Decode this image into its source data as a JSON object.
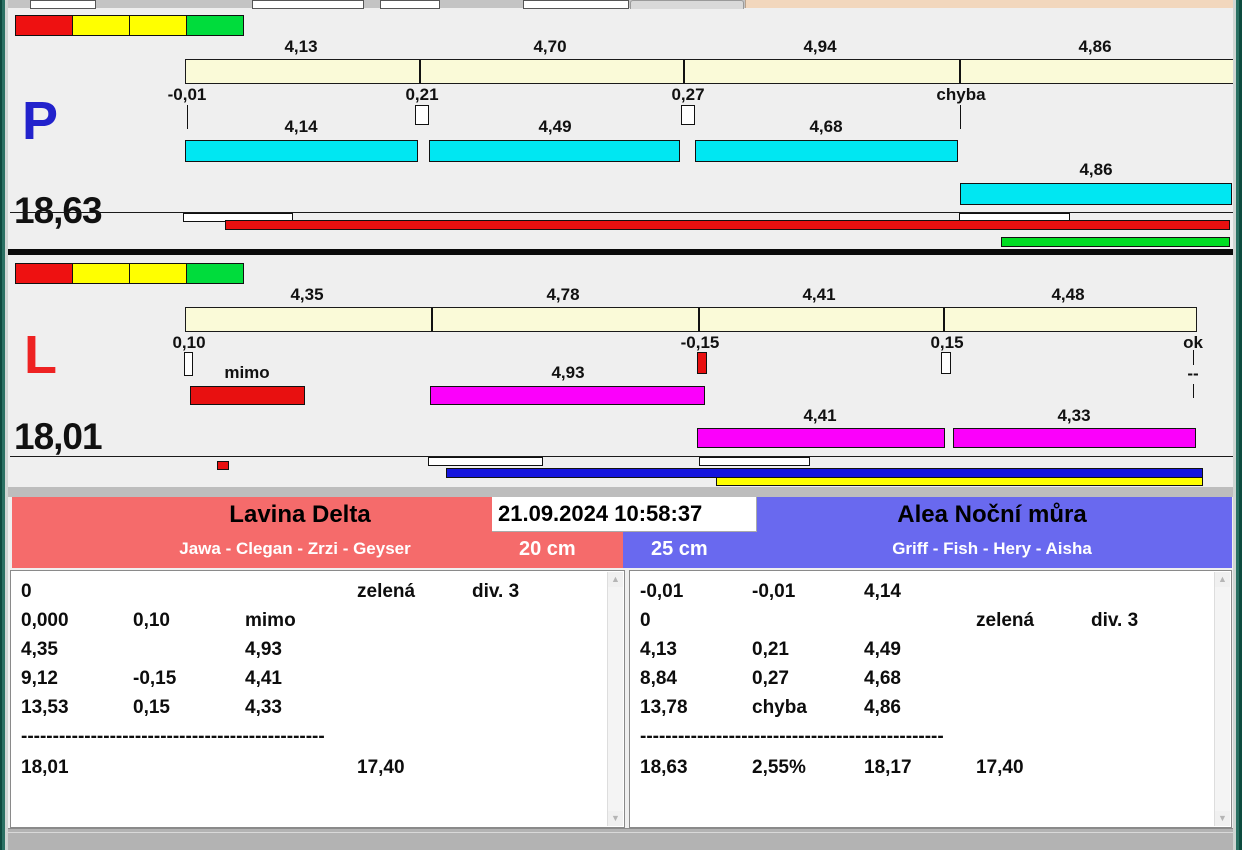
{
  "datetime": "21.09.2024 10:58:37",
  "lane_p": {
    "letter": "P",
    "letter_color": "#2222cc",
    "total_time": "18,63",
    "legend_colors": [
      "#ee1111",
      "#ffff00",
      "#ffff00",
      "#00dc3c"
    ],
    "segment_times": [
      "4,13",
      "4,70",
      "4,94",
      "4,86"
    ],
    "change_markers": [
      "-0,01",
      "0,21",
      "0,27",
      "chyba"
    ],
    "dog_times": [
      "4,14",
      "4,49",
      "4,68",
      "4,86"
    ],
    "dog_bar_color": "#00e7f2"
  },
  "lane_l": {
    "letter": "L",
    "letter_color": "#ee2222",
    "total_time": "18,01",
    "legend_colors": [
      "#ee1111",
      "#ffff00",
      "#ffff00",
      "#00dc3c"
    ],
    "segment_times": [
      "4,35",
      "4,78",
      "4,41",
      "4,48"
    ],
    "change_markers": [
      "0,10",
      "-0,15",
      "0,15",
      "ok"
    ],
    "ok_mark": "--",
    "dog_times": [
      "mimo",
      "4,93",
      "4,41",
      "4,33"
    ],
    "dog_bar_color": "#fb00fb"
  },
  "team_left": {
    "name": "Lavina Delta",
    "dogs": "Jawa - Clegan - Zrzi - Geyser",
    "jump_height": "20 cm",
    "color": "#f56b6b"
  },
  "team_right": {
    "name": "Alea Noční můra",
    "dogs": "Griff - Fish - Hery - Aisha",
    "jump_height": "25 cm",
    "color": "#6969ef"
  },
  "results_left": {
    "rows": [
      [
        "0",
        "",
        "",
        "zelená",
        "div. 3"
      ],
      [
        "0,000",
        "0,10",
        "mimo",
        "",
        ""
      ],
      [
        "4,35",
        "",
        "4,93",
        "",
        ""
      ],
      [
        "9,12",
        "-0,15",
        "4,41",
        "",
        ""
      ],
      [
        "13,53",
        "0,15",
        "4,33",
        "",
        ""
      ]
    ],
    "separator": "------------------------------------------------",
    "total_row": [
      "18,01",
      "",
      "",
      "17,40",
      ""
    ]
  },
  "results_right": {
    "rows": [
      [
        "-0,01",
        "-0,01",
        "4,14",
        "",
        ""
      ],
      [
        "0",
        "",
        "",
        "zelená",
        "div. 3"
      ],
      [
        "4,13",
        "0,21",
        "4,49",
        "",
        ""
      ],
      [
        "8,84",
        "0,27",
        "4,68",
        "",
        ""
      ],
      [
        "13,78",
        "chyba",
        "4,86",
        "",
        ""
      ]
    ],
    "separator": "------------------------------------------------",
    "total_row": [
      "18,63",
      "2,55%",
      "18,17",
      "17,40",
      ""
    ]
  }
}
